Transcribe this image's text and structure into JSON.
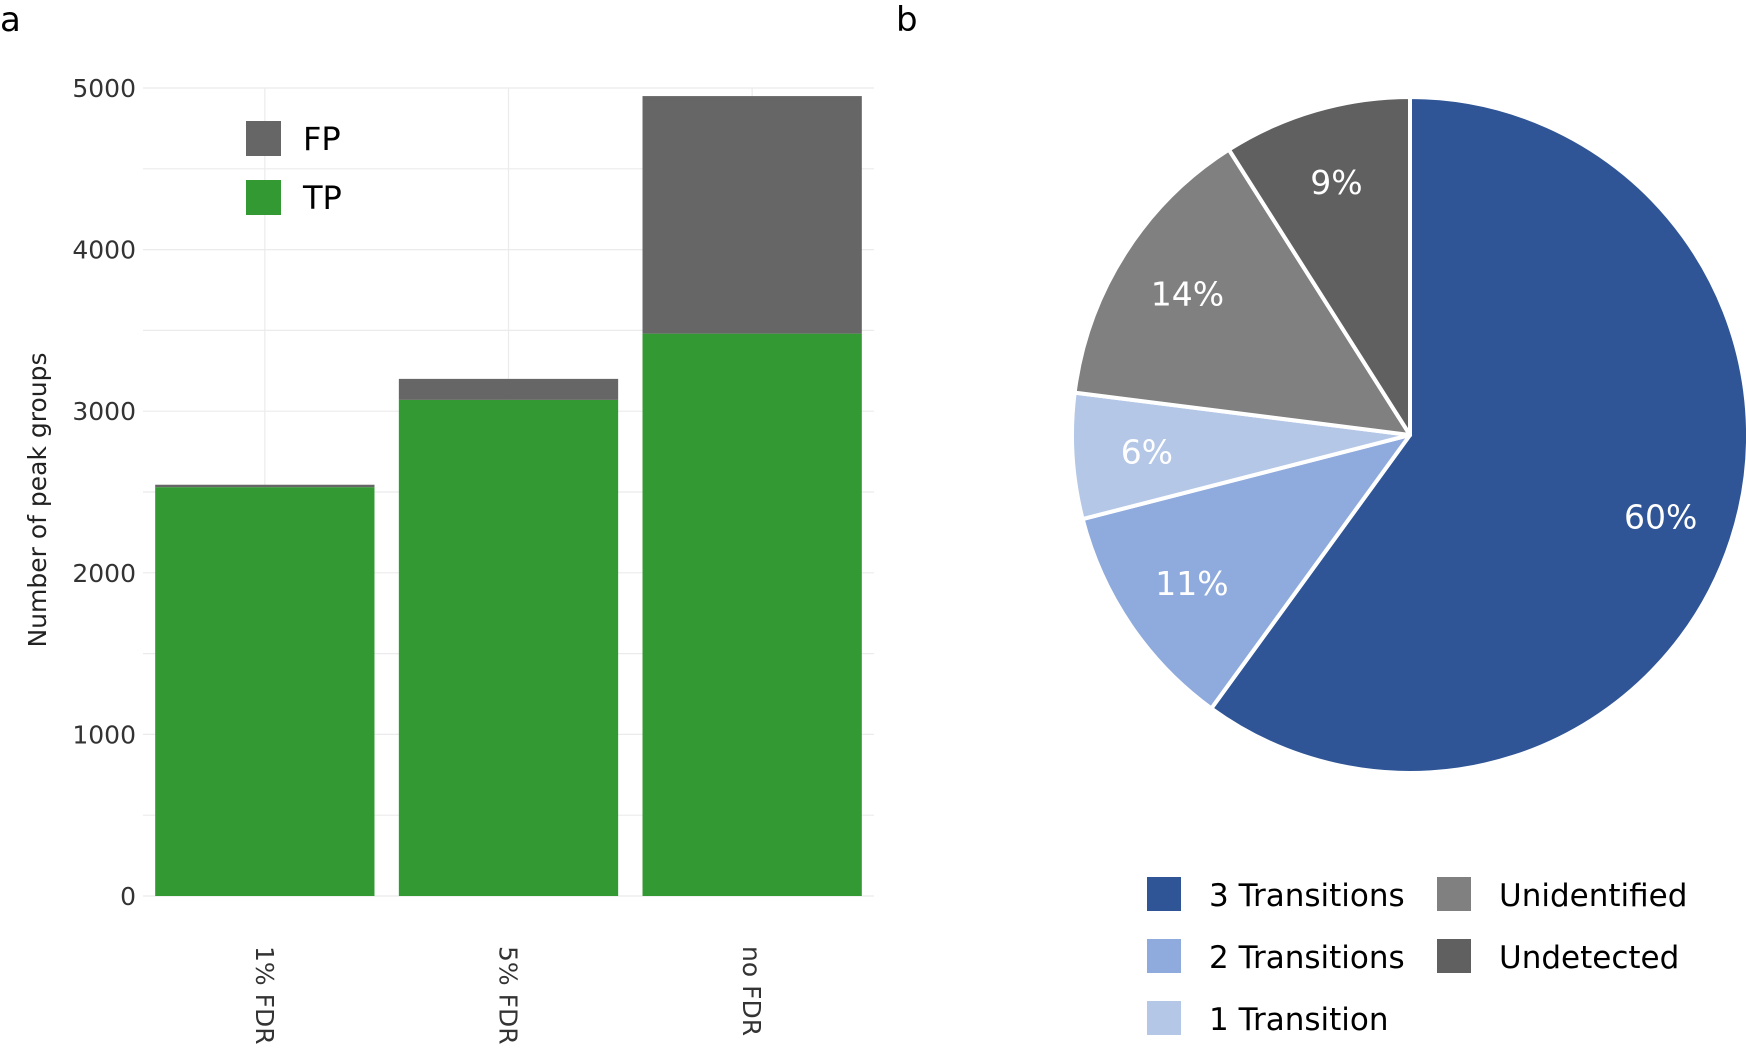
{
  "chart_data": [
    {
      "panel": "a",
      "type": "bar",
      "stacked": true,
      "categories": [
        "1% FDR",
        "5% FDR",
        "no FDR"
      ],
      "series": [
        {
          "name": "TP",
          "color": "#339933",
          "values": [
            2530,
            3070,
            3480
          ]
        },
        {
          "name": "FP",
          "color": "#666666",
          "values": [
            15,
            130,
            1470
          ]
        }
      ],
      "legend": [
        "FP",
        "TP"
      ],
      "legend_position": "top-left",
      "title": "",
      "xlabel": "",
      "ylabel": "Number of peak groups",
      "ylim": [
        0,
        5000
      ],
      "yticks": [
        0,
        1000,
        2000,
        3000,
        4000,
        5000
      ],
      "grid": true
    },
    {
      "panel": "b",
      "type": "pie",
      "slices": [
        {
          "label": "3 Transitions",
          "value": 60,
          "text": "60%",
          "color": "#2f5597"
        },
        {
          "label": "2 Transitions",
          "value": 11,
          "text": "11%",
          "color": "#8faadc"
        },
        {
          "label": "1 Transition",
          "value": 6,
          "text": "6%",
          "color": "#b4c7e7"
        },
        {
          "label": "Unidentified",
          "value": 14,
          "text": "14%",
          "color": "#808080"
        },
        {
          "label": "Undetected",
          "value": 9,
          "text": "9%",
          "color": "#606060"
        }
      ],
      "legend": [
        "3 Transitions",
        "2 Transitions",
        "1 Transition",
        "Unidentified",
        "Undetected"
      ],
      "legend_position": "bottom"
    }
  ]
}
